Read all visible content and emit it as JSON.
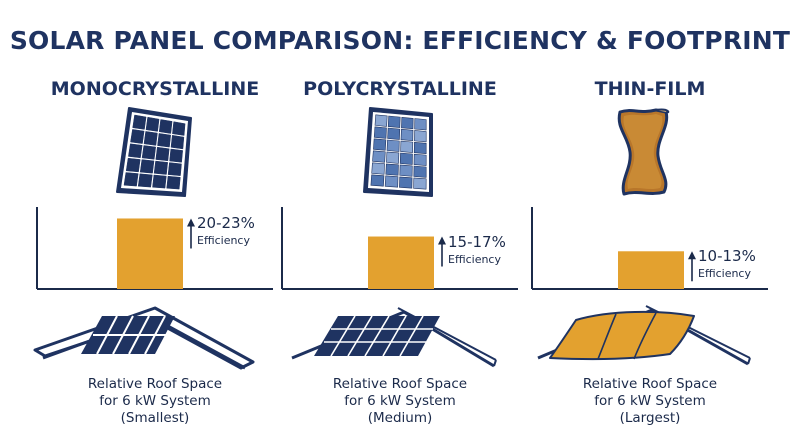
{
  "title": "SOLAR PANEL COMPARISON: EFFICIENCY & FOOTPRINT",
  "colors": {
    "navy": "#1f3361",
    "bar": "#e3a12f",
    "thin_film": "#b8762a",
    "poly": "#5a7eb8"
  },
  "chart_data": {
    "type": "bar",
    "categories": [
      "MONOCRYSTALLINE",
      "POLYCRYSTALLINE",
      "THIN-FILM"
    ],
    "values": [
      21.5,
      16,
      11.5
    ],
    "data_labels": [
      "20-23%",
      "15-17%",
      "10-13%"
    ],
    "ylabel": "",
    "ylim": [
      0,
      25
    ]
  },
  "columns": [
    {
      "name": "MONOCRYSTALLINE",
      "efficiency": "20-23%",
      "efficiency_label": "Efficiency",
      "caption_line1": "Relative Roof Space",
      "caption_line2": "for 6 kW System",
      "caption_line3": "(Smallest)",
      "panel_icon": "monocrystalline-panel-icon",
      "roof_icon": "roof-small-array-icon"
    },
    {
      "name": "POLYCRYSTALLINE",
      "efficiency": "15-17%",
      "efficiency_label": "Efficiency",
      "caption_line1": "Relative Roof Space",
      "caption_line2": "for 6 kW System",
      "caption_line3": "(Medium)",
      "panel_icon": "polycrystalline-panel-icon",
      "roof_icon": "roof-medium-array-icon"
    },
    {
      "name": "THIN-FILM",
      "efficiency": "10-13%",
      "efficiency_label": "Efficiency",
      "caption_line1": "Relative Roof Space",
      "caption_line2": "for 6 kW System",
      "caption_line3": "(Largest)",
      "panel_icon": "thin-film-panel-icon",
      "roof_icon": "roof-large-array-icon"
    }
  ]
}
